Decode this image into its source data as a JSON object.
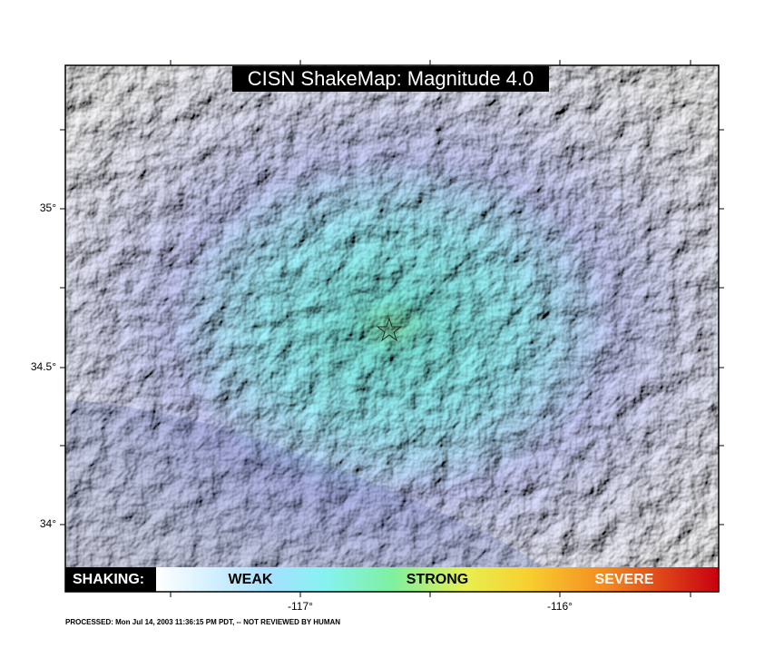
{
  "map": {
    "title": "CISN ShakeMap: Magnitude 4.0",
    "lat_tick_labels": [
      "35°",
      "34.5°",
      "34°"
    ],
    "lon_tick_labels": [
      "-117°",
      "-116°"
    ],
    "legend": {
      "heading": "SHAKING:",
      "labels": [
        "WEAK",
        "STRONG",
        "SEVERE"
      ]
    },
    "footer": "PROCESSED: Mon Jul 14, 2003 11:36:15 PM PDT, -- NOT REVIEWED BY HUMAN"
  }
}
